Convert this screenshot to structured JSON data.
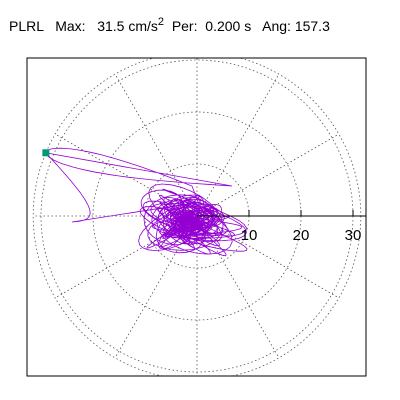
{
  "header": {
    "station": "PLRL",
    "max_label": "Max:",
    "max_value": "31.5",
    "max_unit": "cm/s",
    "max_unit_exp": "2",
    "period_label": "Per:",
    "period_value": "0.200 s",
    "angle_label": "Ang:",
    "angle_value": "157.3"
  },
  "colors": {
    "trace": "#9400D3",
    "marker": "#009973",
    "grid": "#555555",
    "axis": "#000000"
  },
  "chart_data": {
    "type": "polar-particle-motion",
    "radial_ticks": [
      10,
      20,
      30
    ],
    "radial_max": 31.5,
    "spoke_step_deg": 30,
    "grid": true,
    "peak_marker": {
      "r": 31.5,
      "angle_deg": 157.3
    }
  }
}
